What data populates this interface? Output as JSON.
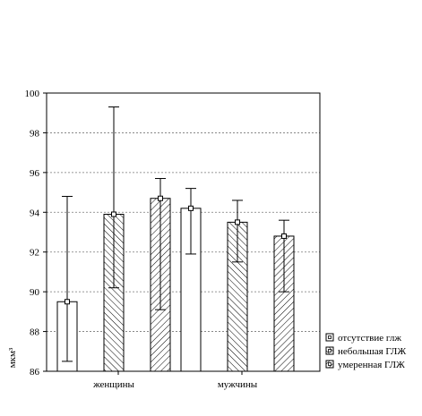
{
  "chart_data": {
    "type": "bar",
    "categories": [
      "женщины",
      "мужчины"
    ],
    "ylabel": "мкм³",
    "ylim": [
      86,
      100
    ],
    "yticks": [
      86,
      88,
      90,
      92,
      94,
      96,
      98,
      100
    ],
    "grid": true,
    "legend_position": "right-bottom",
    "series": [
      {
        "name": "отсутствие глж",
        "pattern": "none",
        "values": [
          89.5,
          94.2
        ],
        "err_low": [
          86.5,
          91.9
        ],
        "err_high": [
          94.8,
          95.2
        ]
      },
      {
        "name": "небольшая ГЛЖ",
        "pattern": "crosshatch",
        "values": [
          93.9,
          93.5
        ],
        "err_low": [
          90.2,
          91.5
        ],
        "err_high": [
          99.3,
          94.6
        ]
      },
      {
        "name": "умеренная ГЛЖ",
        "pattern": "hatch",
        "values": [
          94.7,
          92.8
        ],
        "err_low": [
          89.1,
          90.0
        ],
        "err_high": [
          95.7,
          93.6
        ]
      }
    ]
  }
}
